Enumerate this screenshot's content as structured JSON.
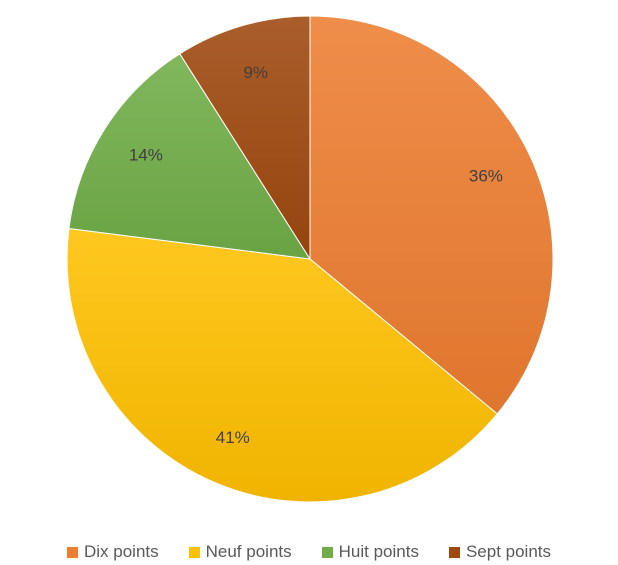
{
  "chart_data": {
    "type": "pie",
    "title": "",
    "categories": [
      "Dix points",
      "Neuf points",
      "Huit points",
      "Sept points"
    ],
    "values": [
      36,
      41,
      14,
      9
    ],
    "data_labels": [
      "36%",
      "41%",
      "14%",
      "9%"
    ],
    "colors": [
      "#ED7D31",
      "#FFC000",
      "#70AD47",
      "#9E480E"
    ],
    "legend_position": "bottom",
    "start_angle": "top, clockwise"
  }
}
